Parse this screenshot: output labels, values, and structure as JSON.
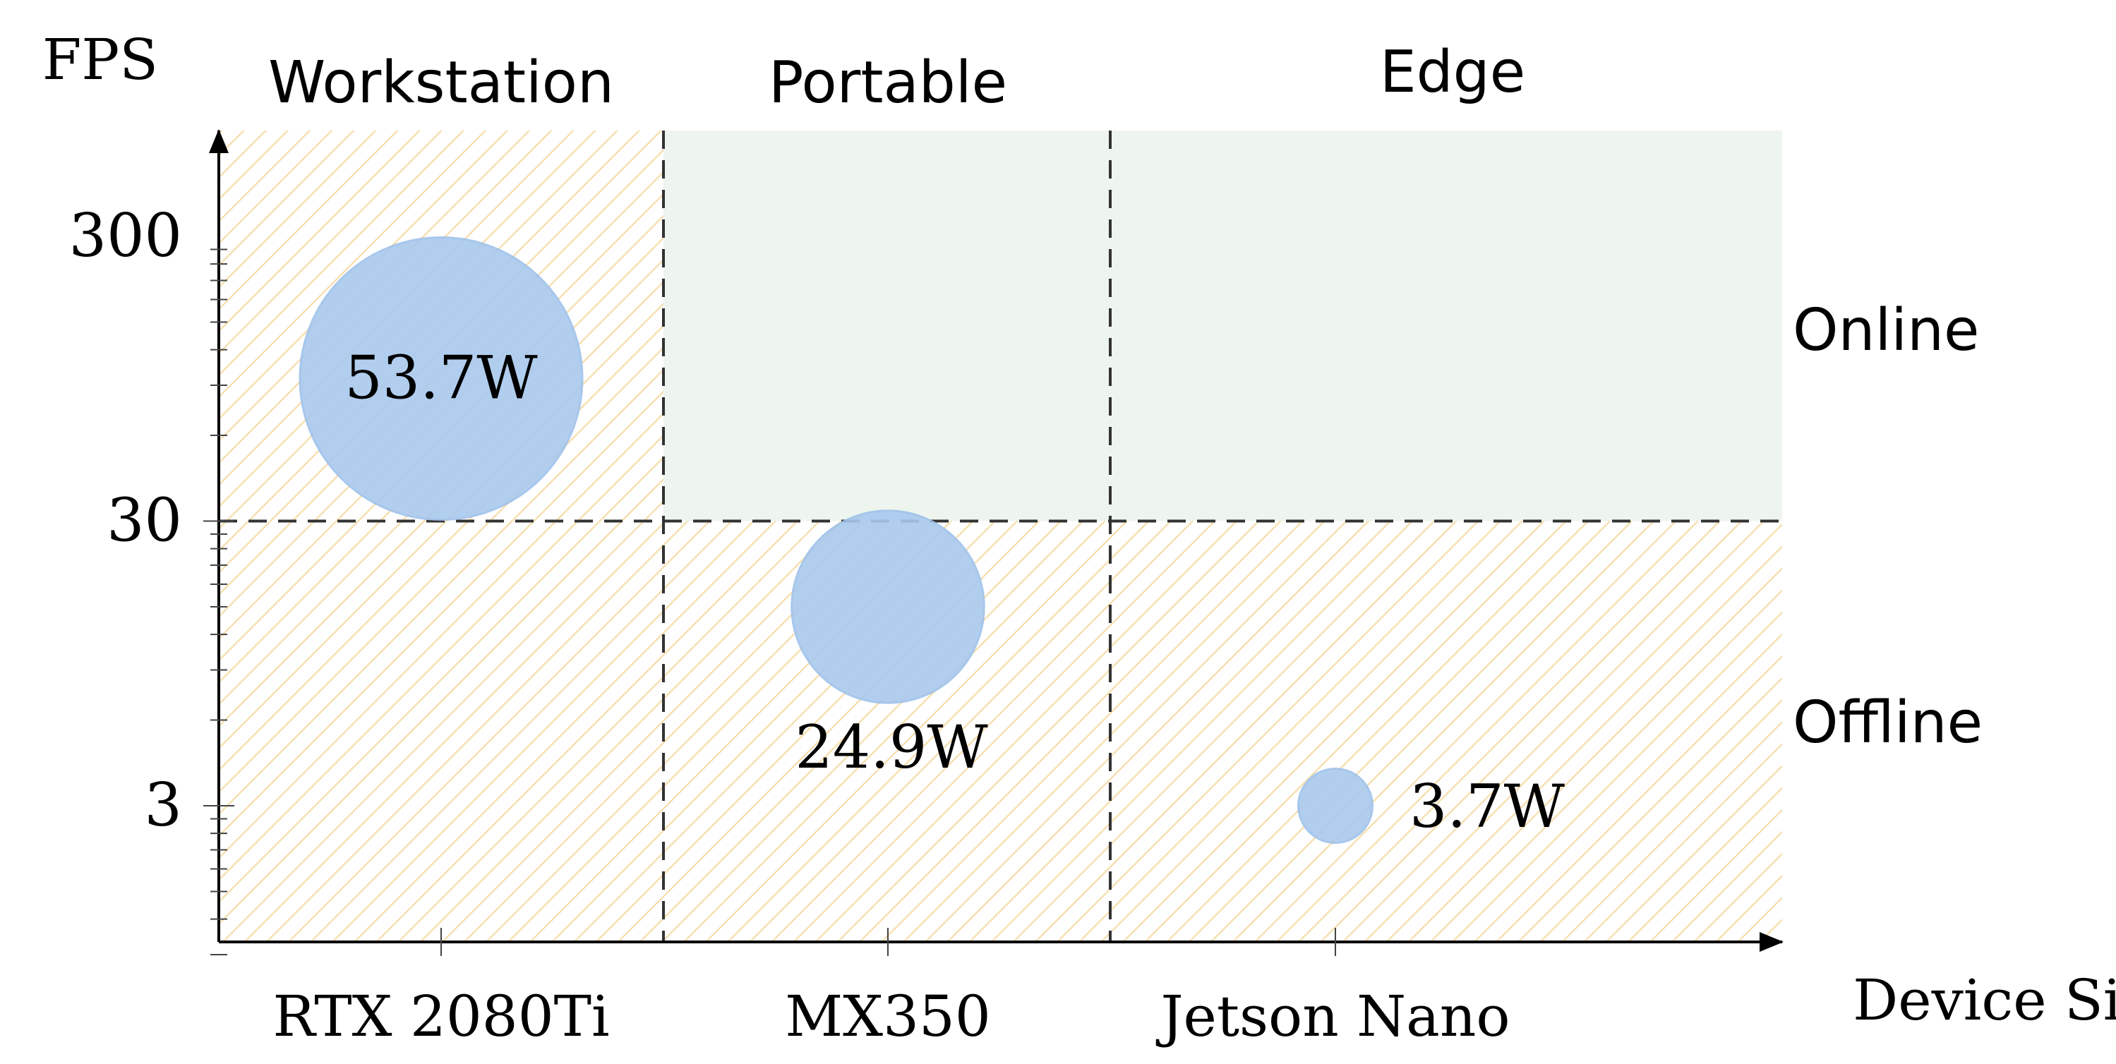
{
  "chart_data": {
    "type": "scatter",
    "subtype": "bubble",
    "title": "",
    "xlabel": "Device Size",
    "ylabel": "FPS",
    "y_scale": "log",
    "ylim": [
      0.65,
      530
    ],
    "y_ticks": [
      3,
      30,
      300
    ],
    "y_tick_labels": [
      "3",
      "30",
      "300"
    ],
    "categories": [
      "RTX 2080Ti",
      "MX350",
      "Jetson Nano"
    ],
    "column_groups": [
      "Workstation",
      "Portable",
      "Edge"
    ],
    "row_regions": [
      {
        "label": "Online",
        "fps_min": 30
      },
      {
        "label": "Offline",
        "fps_max": 30
      }
    ],
    "threshold_fps": 30,
    "points": [
      {
        "device": "RTX 2080Ti",
        "fps": 95,
        "power_w": 53.7,
        "label": "53.7W"
      },
      {
        "device": "MX350",
        "fps": 15,
        "power_w": 24.9,
        "label": "24.9W"
      },
      {
        "device": "Jetson Nano",
        "fps": 3,
        "power_w": 3.7,
        "label": "3.7W"
      }
    ],
    "colors": {
      "bubble": "#a9c9ee",
      "bubble_stroke": "#9ec1ea",
      "online_region": "#edf5ee",
      "offline_hatch": "#f6ddaa",
      "axis": "#000000",
      "divider": "#333333"
    },
    "grid": false,
    "legend": "none"
  }
}
